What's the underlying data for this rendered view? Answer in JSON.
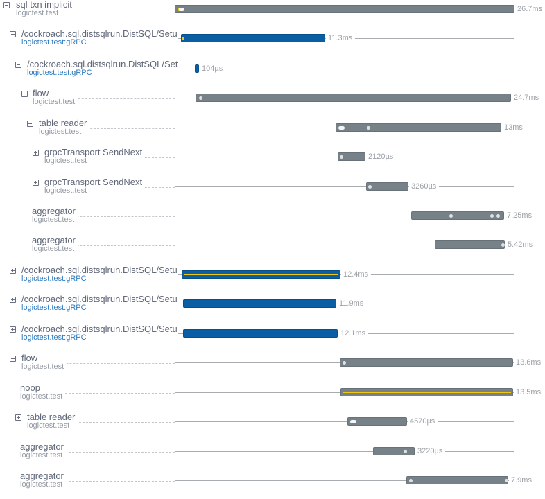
{
  "colors": {
    "span_gray": "#778188",
    "span_blue": "#0a5ea4",
    "highlight_yellow": "#f2c80f",
    "grpc_service_blue": "#2c7bbf"
  },
  "spans": [
    {
      "name": "sql txn implicit",
      "service": "logictest.test",
      "duration": "26.7ms",
      "toggle": "collapse",
      "color": "gray"
    },
    {
      "name": "/cockroach.sql.distsqlrun.DistSQL/SetupFlow",
      "service": "logictest.test:gRPC",
      "duration": "11.3ms",
      "toggle": "collapse",
      "color": "blue"
    },
    {
      "name": "/cockroach.sql.distsqlrun.DistSQL/SetupFlow",
      "service": "logictest.test:gRPC",
      "duration": "104µs",
      "toggle": "collapse",
      "color": "blue"
    },
    {
      "name": "flow",
      "service": "logictest.test",
      "duration": "24.7ms",
      "toggle": "collapse",
      "color": "gray"
    },
    {
      "name": "table reader",
      "service": "logictest.test",
      "duration": "13ms",
      "toggle": "collapse",
      "color": "gray"
    },
    {
      "name": "grpcTransport SendNext",
      "service": "logictest.test",
      "duration": "2120µs",
      "toggle": "expand",
      "color": "gray"
    },
    {
      "name": "grpcTransport SendNext",
      "service": "logictest.test",
      "duration": "3260µs",
      "toggle": "expand",
      "color": "gray"
    },
    {
      "name": "aggregator",
      "service": "logictest.test",
      "duration": "7.25ms",
      "toggle": "none",
      "color": "gray"
    },
    {
      "name": "aggregator",
      "service": "logictest.test",
      "duration": "5.42ms",
      "toggle": "none",
      "color": "gray"
    },
    {
      "name": "/cockroach.sql.distsqlrun.DistSQL/SetupFlow",
      "service": "logictest.test:gRPC",
      "duration": "12.4ms",
      "toggle": "expand",
      "color": "blue"
    },
    {
      "name": "/cockroach.sql.distsqlrun.DistSQL/SetupFlow",
      "service": "logictest.test:gRPC",
      "duration": "11.9ms",
      "toggle": "expand",
      "color": "blue"
    },
    {
      "name": "/cockroach.sql.distsqlrun.DistSQL/SetupFlow",
      "service": "logictest.test:gRPC",
      "duration": "12.1ms",
      "toggle": "expand",
      "color": "blue"
    },
    {
      "name": "flow",
      "service": "logictest.test",
      "duration": "13.6ms",
      "toggle": "collapse",
      "color": "gray"
    },
    {
      "name": "noop",
      "service": "logictest.test",
      "duration": "13.5ms",
      "toggle": "none",
      "color": "gray"
    },
    {
      "name": "table reader",
      "service": "logictest.test",
      "duration": "4570µs",
      "toggle": "expand",
      "color": "gray"
    },
    {
      "name": "aggregator",
      "service": "logictest.test",
      "duration": "3220µs",
      "toggle": "none",
      "color": "gray"
    },
    {
      "name": "aggregator",
      "service": "logictest.test",
      "duration": "7.9ms",
      "toggle": "none",
      "color": "gray"
    }
  ]
}
